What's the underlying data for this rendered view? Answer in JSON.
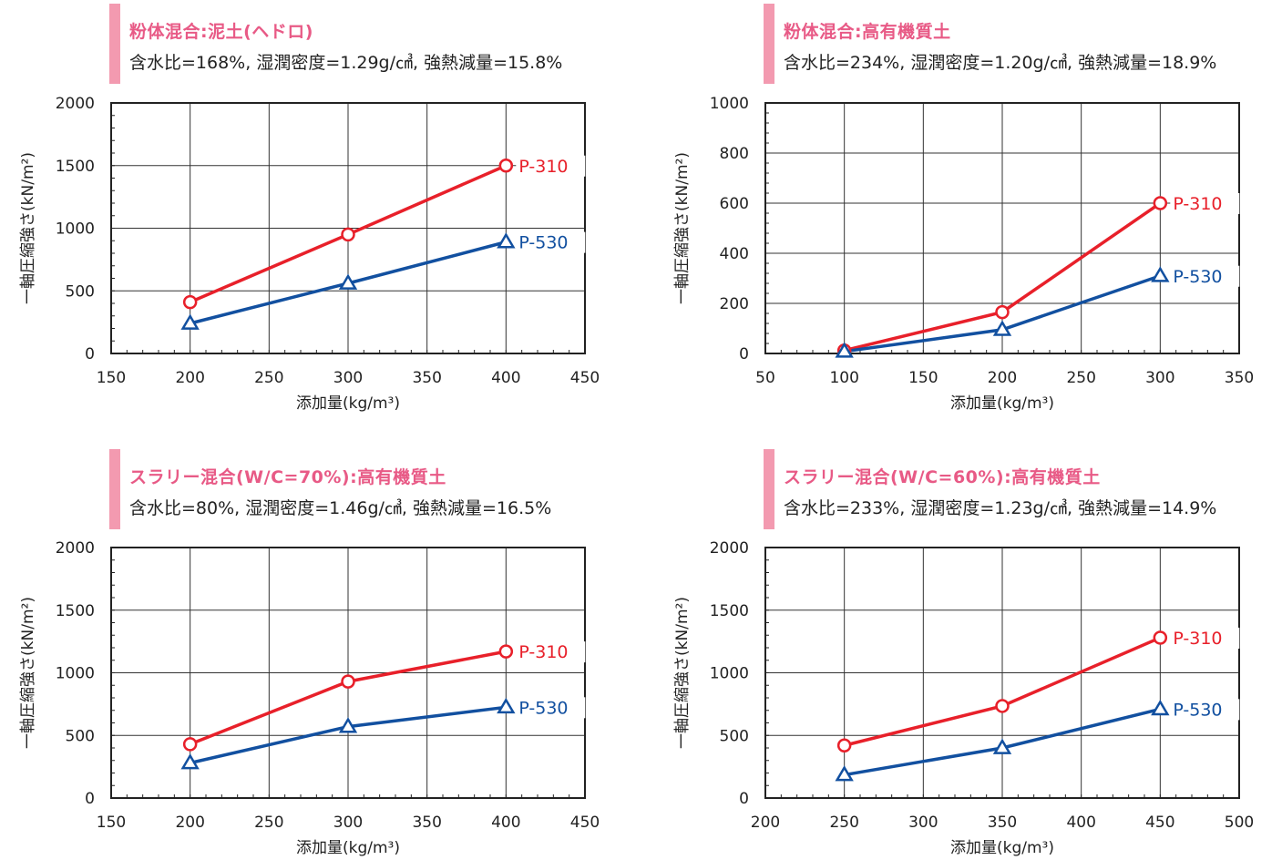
{
  "colors": {
    "p310": "#e8202a",
    "p530": "#1250a0",
    "accent": "#f39ab0",
    "title": "#e85a86"
  },
  "chart_data": [
    {
      "type": "line",
      "title": "粉体混合:泥土(ヘドロ)",
      "subtitle": "含水比=168%, 湿潤密度=1.29g/㎤, 強熱減量=15.8%",
      "xlabel": "添加量(kg/m³)",
      "ylabel": "一軸圧縮強さ(kN/m²)",
      "xlim": [
        150,
        450
      ],
      "ylim": [
        0,
        2000
      ],
      "xticks": [
        150,
        200,
        250,
        300,
        350,
        400,
        450
      ],
      "yticks": [
        0,
        500,
        1000,
        1500,
        2000
      ],
      "series": [
        {
          "name": "P-310",
          "marker": "circle",
          "x": [
            200,
            300,
            400
          ],
          "y": [
            410,
            950,
            1500
          ]
        },
        {
          "name": "P-530",
          "marker": "triangle",
          "x": [
            200,
            300,
            400
          ],
          "y": [
            240,
            560,
            890
          ]
        }
      ]
    },
    {
      "type": "line",
      "title": "粉体混合:高有機質土",
      "subtitle": "含水比=234%, 湿潤密度=1.20g/㎤, 強熱減量=18.9%",
      "xlabel": "添加量(kg/m³)",
      "ylabel": "一軸圧縮強さ(kN/m²)",
      "xlim": [
        50,
        350
      ],
      "ylim": [
        0,
        1000
      ],
      "xticks": [
        50,
        100,
        150,
        200,
        250,
        300,
        350
      ],
      "yticks": [
        0,
        200,
        400,
        600,
        800,
        1000
      ],
      "series": [
        {
          "name": "P-310",
          "marker": "circle",
          "x": [
            100,
            200,
            300
          ],
          "y": [
            12,
            165,
            600
          ]
        },
        {
          "name": "P-530",
          "marker": "triangle",
          "x": [
            100,
            200,
            300
          ],
          "y": [
            8,
            95,
            310
          ]
        }
      ]
    },
    {
      "type": "line",
      "title": "スラリー混合(W/C=70%):高有機質土",
      "subtitle": "含水比=80%, 湿潤密度=1.46g/㎤, 強熱減量=16.5%",
      "xlabel": "添加量(kg/m³)",
      "ylabel": "一軸圧縮強さ(kN/m²)",
      "xlim": [
        150,
        450
      ],
      "ylim": [
        0,
        2000
      ],
      "xticks": [
        150,
        200,
        250,
        300,
        350,
        400,
        450
      ],
      "yticks": [
        0,
        500,
        1000,
        1500,
        2000
      ],
      "series": [
        {
          "name": "P-310",
          "marker": "circle",
          "x": [
            200,
            300,
            400
          ],
          "y": [
            430,
            930,
            1170
          ]
        },
        {
          "name": "P-530",
          "marker": "triangle",
          "x": [
            200,
            300,
            400
          ],
          "y": [
            280,
            570,
            725
          ]
        }
      ]
    },
    {
      "type": "line",
      "title": "スラリー混合(W/C=60%):高有機質土",
      "subtitle": "含水比=233%, 湿潤密度=1.23g/㎤, 強熱減量=14.9%",
      "xlabel": "添加量(kg/m³)",
      "ylabel": "一軸圧縮強さ(kN/m²)",
      "xlim": [
        200,
        500
      ],
      "ylim": [
        0,
        2000
      ],
      "xticks": [
        200,
        250,
        300,
        350,
        400,
        450,
        500
      ],
      "yticks": [
        0,
        500,
        1000,
        1500,
        2000
      ],
      "series": [
        {
          "name": "P-310",
          "marker": "circle",
          "x": [
            250,
            350,
            450
          ],
          "y": [
            420,
            735,
            1280
          ]
        },
        {
          "name": "P-530",
          "marker": "triangle",
          "x": [
            250,
            350,
            450
          ],
          "y": [
            185,
            400,
            710
          ]
        }
      ]
    }
  ]
}
